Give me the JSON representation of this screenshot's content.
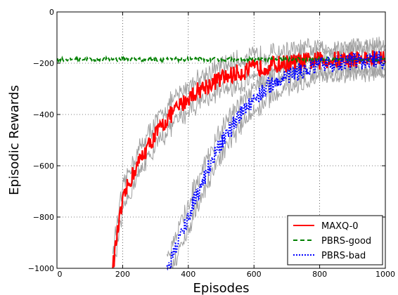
{
  "chart_data": {
    "type": "line",
    "xlabel": "Episodes",
    "ylabel": "Episodic Rewards",
    "xlim": [
      0,
      1000
    ],
    "ylim": [
      -1000,
      0
    ],
    "xticks": [
      0,
      200,
      400,
      600,
      800,
      1000
    ],
    "yticks": [
      0,
      -200,
      -400,
      -600,
      -800,
      -1000
    ],
    "xtick_labels": [
      "0",
      "200",
      "400",
      "600",
      "800",
      "1000"
    ],
    "ytick_labels": [
      "0",
      "−200",
      "−400",
      "−600",
      "−800",
      "−1000"
    ],
    "grid": true,
    "legend_position": "lower-right",
    "series": [
      {
        "name": "MAXQ-0",
        "color": "#ff0000",
        "style": "solid",
        "band_color": "#a0a0a0",
        "x": [
          170,
          180,
          190,
          200,
          210,
          225,
          240,
          260,
          280,
          300,
          320,
          340,
          360,
          380,
          400,
          430,
          460,
          500,
          540,
          580,
          620,
          660,
          700,
          750,
          800,
          850,
          900,
          950,
          1000
        ],
        "values": [
          -1000,
          -900,
          -815,
          -750,
          -700,
          -650,
          -610,
          -560,
          -520,
          -480,
          -445,
          -410,
          -385,
          -360,
          -335,
          -305,
          -285,
          -260,
          -242,
          -228,
          -215,
          -207,
          -200,
          -195,
          -190,
          -187,
          -184,
          -183,
          -182
        ]
      },
      {
        "name": "PBRS-good",
        "color": "#008000",
        "style": "dashed",
        "band_color": "#a0a0a0",
        "x": [
          0,
          100,
          200,
          300,
          400,
          500,
          600,
          700,
          800,
          900,
          1000
        ],
        "values": [
          -185,
          -185,
          -185,
          -185,
          -185,
          -185,
          -185,
          -185,
          -185,
          -185,
          -185
        ]
      },
      {
        "name": "PBRS-bad",
        "color": "#0000ff",
        "style": "dashdot",
        "band_color": "#a0a0a0",
        "x": [
          335,
          350,
          365,
          380,
          400,
          420,
          440,
          460,
          480,
          500,
          520,
          540,
          560,
          580,
          600,
          630,
          660,
          700,
          750,
          800,
          850,
          900,
          950,
          1000
        ],
        "values": [
          -1000,
          -960,
          -910,
          -860,
          -800,
          -730,
          -670,
          -610,
          -560,
          -515,
          -475,
          -435,
          -400,
          -370,
          -340,
          -305,
          -275,
          -250,
          -228,
          -212,
          -200,
          -193,
          -188,
          -184
        ]
      }
    ]
  }
}
